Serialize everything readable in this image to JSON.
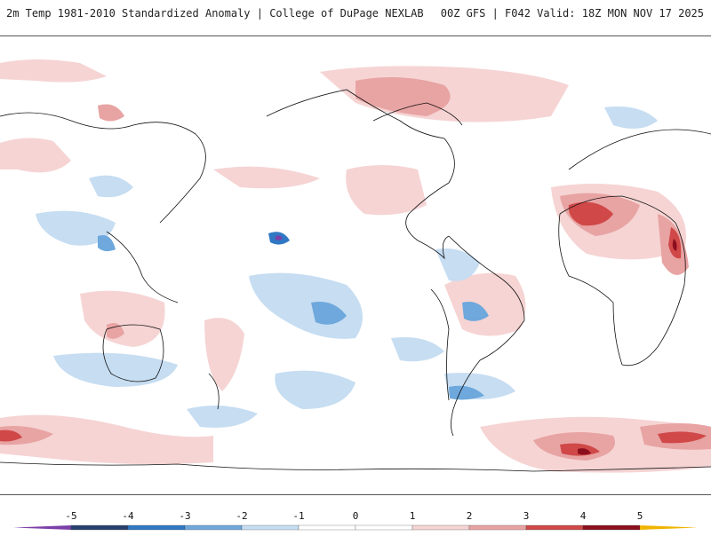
{
  "header": {
    "title": "2m Temp 1981-2010 Standardized Anomaly | College of DuPage NEXLAB",
    "run_info": "00Z GFS | F042 Valid: 18Z MON NOV 17 2025"
  },
  "legend": {
    "labels": [
      "-5",
      "-4",
      "-3",
      "-2",
      "-1",
      "0",
      "1",
      "2",
      "3",
      "4",
      "5"
    ],
    "colors": {
      "lt_minus5": "#7b3fa8",
      "minus5_to_minus4": "#27406e",
      "minus4_to_minus3": "#2f78c4",
      "minus3_to_minus2": "#6ea8dc",
      "minus2_to_minus1": "#c6ddf2",
      "minus1_to_1": "#ffffff",
      "plus1_to_2": "#f6d4d4",
      "plus2_to_3": "#e8a3a3",
      "plus3_to_4": "#d04848",
      "plus4_to_5": "#8c0f1e",
      "gt_plus5": "#f0b400"
    }
  },
  "map": {
    "colors": {
      "land_outline": "#111111",
      "background": "#ffffff"
    }
  }
}
